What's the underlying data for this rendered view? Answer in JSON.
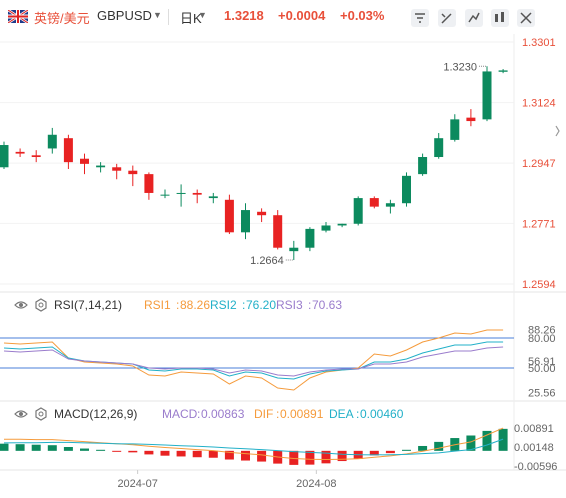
{
  "header": {
    "symbol_cn": "英镑/美元",
    "symbol_code": "GBPUSD",
    "period": "日K",
    "price": "1.3218",
    "change": "+0.0004",
    "change_pct": "+0.03%",
    "icons": [
      "alert-icon",
      "draw-icon",
      "indicator-icon",
      "compare-icon",
      "settings-icon"
    ]
  },
  "chart_data": [
    {
      "type": "candlestick",
      "title": "",
      "yaxis_labels": [
        "1.3301",
        "1.3124",
        "1.2947",
        "1.2771",
        "1.2594"
      ],
      "ylim": [
        1.2594,
        1.3301
      ],
      "x_labels": [
        "2024-07",
        "2024-08"
      ],
      "annotations": {
        "high_label": "1.3230",
        "low_label": "1.2664"
      },
      "colors": {
        "up": "#0c8a5e",
        "down": "#e82222"
      },
      "candles": [
        {
          "o": 1.2935,
          "h": 1.301,
          "l": 1.293,
          "c": 1.3
        },
        {
          "o": 1.298,
          "h": 1.299,
          "l": 1.2965,
          "c": 1.2975
        },
        {
          "o": 1.297,
          "h": 1.2985,
          "l": 1.295,
          "c": 1.2965
        },
        {
          "o": 1.299,
          "h": 1.305,
          "l": 1.2975,
          "c": 1.303
        },
        {
          "o": 1.302,
          "h": 1.303,
          "l": 1.293,
          "c": 1.295
        },
        {
          "o": 1.296,
          "h": 1.2975,
          "l": 1.2915,
          "c": 1.2945
        },
        {
          "o": 1.2935,
          "h": 1.295,
          "l": 1.292,
          "c": 1.294
        },
        {
          "o": 1.2935,
          "h": 1.2945,
          "l": 1.29,
          "c": 1.2925
        },
        {
          "o": 1.2925,
          "h": 1.294,
          "l": 1.288,
          "c": 1.2915
        },
        {
          "o": 1.2915,
          "h": 1.292,
          "l": 1.284,
          "c": 1.286
        },
        {
          "o": 1.2855,
          "h": 1.287,
          "l": 1.2845,
          "c": 1.2855
        },
        {
          "o": 1.286,
          "h": 1.2885,
          "l": 1.282,
          "c": 1.286
        },
        {
          "o": 1.286,
          "h": 1.287,
          "l": 1.283,
          "c": 1.2855
        },
        {
          "o": 1.2845,
          "h": 1.286,
          "l": 1.283,
          "c": 1.285
        },
        {
          "o": 1.284,
          "h": 1.2855,
          "l": 1.274,
          "c": 1.2745
        },
        {
          "o": 1.2745,
          "h": 1.283,
          "l": 1.2725,
          "c": 1.281
        },
        {
          "o": 1.2805,
          "h": 1.2815,
          "l": 1.2775,
          "c": 1.2795
        },
        {
          "o": 1.2795,
          "h": 1.281,
          "l": 1.2695,
          "c": 1.27
        },
        {
          "o": 1.269,
          "h": 1.272,
          "l": 1.2664,
          "c": 1.27
        },
        {
          "o": 1.27,
          "h": 1.276,
          "l": 1.269,
          "c": 1.2755
        },
        {
          "o": 1.275,
          "h": 1.2775,
          "l": 1.2745,
          "c": 1.2765
        },
        {
          "o": 1.2765,
          "h": 1.277,
          "l": 1.276,
          "c": 1.277
        },
        {
          "o": 1.277,
          "h": 1.285,
          "l": 1.2765,
          "c": 1.2845
        },
        {
          "o": 1.2845,
          "h": 1.285,
          "l": 1.2815,
          "c": 1.282
        },
        {
          "o": 1.282,
          "h": 1.284,
          "l": 1.28,
          "c": 1.283
        },
        {
          "o": 1.283,
          "h": 1.292,
          "l": 1.282,
          "c": 1.291
        },
        {
          "o": 1.2915,
          "h": 1.2975,
          "l": 1.291,
          "c": 1.2965
        },
        {
          "o": 1.2965,
          "h": 1.3035,
          "l": 1.296,
          "c": 1.302
        },
        {
          "o": 1.3015,
          "h": 1.309,
          "l": 1.301,
          "c": 1.3075
        },
        {
          "o": 1.308,
          "h": 1.3105,
          "l": 1.3055,
          "c": 1.307
        },
        {
          "o": 1.3075,
          "h": 1.323,
          "l": 1.307,
          "c": 1.3215
        },
        {
          "o": 1.3214,
          "h": 1.3222,
          "l": 1.321,
          "c": 1.3218
        }
      ]
    },
    {
      "type": "line",
      "title": "RSI(7,14,21)",
      "legend": [
        {
          "name": "RSI1",
          "value": "88.26",
          "color": "#f59b3c"
        },
        {
          "name": "RSI2",
          "value": "76.20",
          "color": "#22b0c8"
        },
        {
          "name": "RSI3",
          "value": "70.63",
          "color": "#9a7ccc"
        }
      ],
      "yaxis_labels": [
        "88.26",
        "80.00",
        "56.91",
        "50.00",
        "25.56"
      ],
      "ylim": [
        20,
        100
      ],
      "reference_lines": [
        80,
        50
      ],
      "series": [
        {
          "name": "RSI1",
          "values": [
            75,
            74,
            75,
            76,
            60,
            56,
            55,
            54,
            52,
            43,
            42,
            46,
            45,
            44,
            34,
            42,
            40,
            30,
            28,
            40,
            46,
            48,
            50,
            64,
            62,
            68,
            76,
            80,
            85,
            84,
            88,
            88
          ]
        },
        {
          "name": "RSI2",
          "values": [
            70,
            69,
            70,
            71,
            60,
            57,
            56,
            55,
            54,
            48,
            47,
            49,
            49,
            48,
            42,
            46,
            45,
            40,
            39,
            44,
            47,
            48,
            49,
            56,
            56,
            59,
            65,
            69,
            73,
            73,
            76,
            76
          ]
        },
        {
          "name": "RSI3",
          "values": [
            67,
            66,
            67,
            68,
            59,
            57,
            56,
            55,
            54,
            50,
            49,
            50,
            50,
            49,
            45,
            48,
            47,
            43,
            42,
            46,
            48,
            49,
            49,
            54,
            54,
            56,
            61,
            64,
            67,
            67,
            70,
            71
          ]
        }
      ]
    },
    {
      "type": "bar",
      "title": "MACD(12,26,9)",
      "legend": [
        {
          "name": "MACD",
          "value": "0.00863",
          "color": "#9a7ccc"
        },
        {
          "name": "DIF",
          "value": "0.00891",
          "color": "#f59b3c"
        },
        {
          "name": "DEA",
          "value": "0.00460",
          "color": "#22b0c8"
        }
      ],
      "yaxis_labels": [
        "0.00891",
        "0.00148",
        "-0.00596"
      ],
      "ylim": [
        -0.0075,
        0.0105
      ],
      "series": [
        {
          "name": "MACD",
          "values": [
            0.0028,
            0.0026,
            0.0024,
            0.0022,
            0.0015,
            0.0009,
            0.0004,
            -0.0001,
            -0.0006,
            -0.0014,
            -0.0019,
            -0.0022,
            -0.0025,
            -0.0027,
            -0.0034,
            -0.0038,
            -0.0042,
            -0.005,
            -0.0055,
            -0.0054,
            -0.0049,
            -0.004,
            -0.0032,
            -0.0018,
            -0.0009,
            0.0004,
            0.0019,
            0.0035,
            0.005,
            0.006,
            0.0078,
            0.0086
          ]
        },
        {
          "name": "DIF",
          "values": [
            0.0045,
            0.0045,
            0.0044,
            0.0044,
            0.004,
            0.0036,
            0.0032,
            0.0028,
            0.0024,
            0.0018,
            0.0013,
            0.0009,
            0.0005,
            0.0001,
            -0.0006,
            -0.0011,
            -0.0016,
            -0.0024,
            -0.003,
            -0.0033,
            -0.0034,
            -0.0033,
            -0.0031,
            -0.0025,
            -0.002,
            -0.0012,
            -0.0002,
            0.001,
            0.0024,
            0.0035,
            0.0062,
            0.0089
          ]
        },
        {
          "name": "DEA",
          "values": [
            0.0031,
            0.0032,
            0.0032,
            0.0033,
            0.0033,
            0.0031,
            0.003,
            0.0028,
            0.0027,
            0.0025,
            0.0023,
            0.002,
            0.0018,
            0.0015,
            0.0011,
            0.0008,
            0.0005,
            0.0001,
            -0.0003,
            -0.0006,
            -0.0009,
            -0.0013,
            -0.0015,
            -0.0016,
            -0.0015,
            -0.0014,
            -0.0011,
            -0.0008,
            -0.0001,
            0.0005,
            0.0023,
            0.0046
          ]
        }
      ]
    }
  ]
}
